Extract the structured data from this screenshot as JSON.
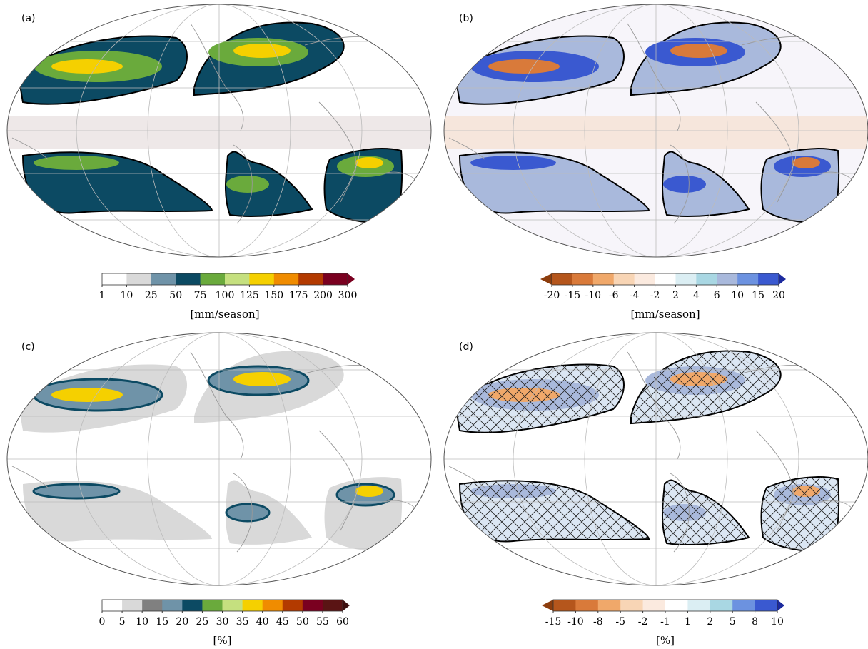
{
  "panels": [
    {
      "label": "(a)"
    },
    {
      "label": "(b)"
    },
    {
      "label": "(c)"
    },
    {
      "label": "(d)"
    }
  ],
  "colorbars": [
    {
      "ticks": [
        1,
        10,
        25,
        50,
        75,
        100,
        125,
        150,
        175,
        200,
        300
      ],
      "colors": [
        "#ffffff",
        "#d9d9d9",
        "#6f93a8",
        "#0c4a63",
        "#6aaa3c",
        "#c5e07f",
        "#f5d000",
        "#f08c00",
        "#b33a00",
        "#7a0020"
      ],
      "high_arrow_color": "#7a0020",
      "units": "[mm/season]"
    },
    {
      "ticks": [
        -20,
        -15,
        -10,
        -6,
        -4,
        -2,
        2,
        4,
        6,
        10,
        15,
        20
      ],
      "colors": [
        "#b5561c",
        "#d97a3a",
        "#f0a86a",
        "#f8d5b5",
        "#fbeadf",
        "#ffffff",
        "#dbeef3",
        "#a9d7e3",
        "#a9b9dc",
        "#6c92e0",
        "#3a59d0"
      ],
      "low_arrow_color": "#8c3d0d",
      "high_arrow_color": "#1c2a9e",
      "units": "[mm/season]"
    },
    {
      "ticks": [
        0,
        5,
        10,
        15,
        20,
        25,
        30,
        35,
        40,
        45,
        50,
        55,
        60
      ],
      "colors": [
        "#ffffff",
        "#d9d9d9",
        "#808080",
        "#6f93a8",
        "#0c4a63",
        "#6aaa3c",
        "#c5e07f",
        "#f5d000",
        "#f08c00",
        "#b33a00",
        "#7a0020",
        "#5a1414"
      ],
      "high_arrow_color": "#3d0f0f",
      "units": "[%]"
    },
    {
      "ticks": [
        -15,
        -10,
        -8,
        -5,
        -2,
        -1,
        1,
        2,
        5,
        8,
        10
      ],
      "colors": [
        "#b5561c",
        "#d97a3a",
        "#f0a86a",
        "#f8d5b5",
        "#fbeadf",
        "#ffffff",
        "#dbeef3",
        "#a9d7e3",
        "#6c92e0",
        "#3a59d0"
      ],
      "low_arrow_color": "#8c3d0d",
      "high_arrow_color": "#1c2a9e",
      "units": "[%]"
    }
  ]
}
